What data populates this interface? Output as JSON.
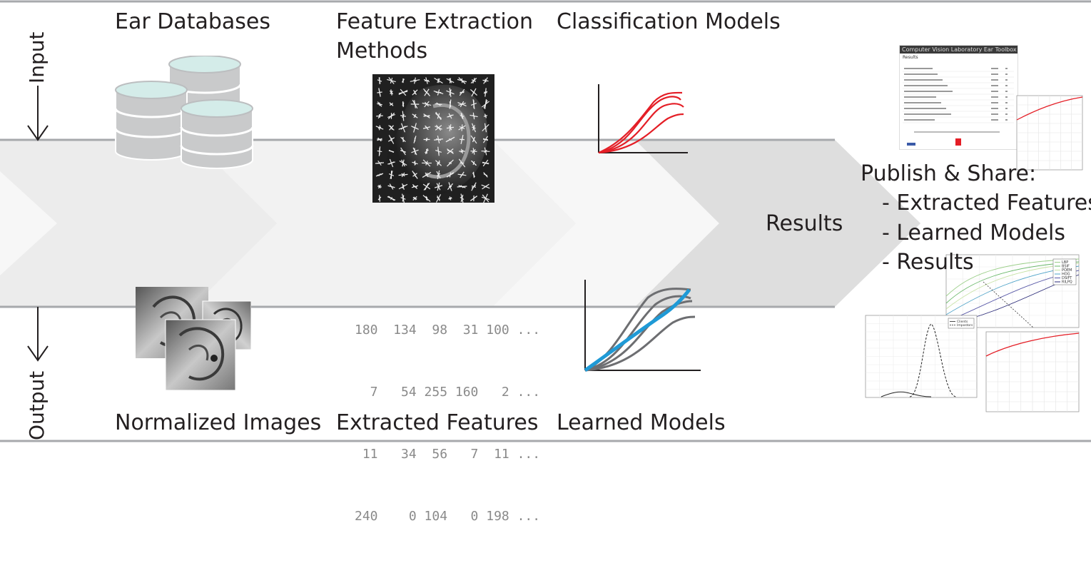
{
  "side_labels": {
    "input": "Input",
    "output": "Output"
  },
  "top_headers": {
    "ear_databases": "Ear Databases",
    "feature_extraction_line1": "Feature Extraction",
    "feature_extraction_line2": "Methods",
    "classification_models": "Classification Models"
  },
  "bottom_headers": {
    "normalized_images": "Normalized Images",
    "extracted_features": "Extracted Features",
    "learned_models": "Learned Models"
  },
  "results_label": "Results",
  "publish": {
    "title": "Publish & Share:",
    "items": [
      "- Extracted Features",
      "- Learned Models",
      "- Results"
    ]
  },
  "feature_matrix": [
    "180  134  98  31 100 ...",
    "  7   54 255 160   2 ...",
    " 11   34  56   7  11 ...",
    "240    0 104   0 198 ..."
  ],
  "toolbox_screenshot": {
    "banner": "Computer Vision Laboratory Ear Toolbox",
    "subtitle": "Results"
  },
  "roc_legend": [
    "LBP",
    "BSIF",
    "POEM",
    "HOG",
    "DSIFT",
    "RILPQ"
  ],
  "dist_legend": [
    "Clients",
    "Impostors"
  ],
  "colors": {
    "band": "#e6e6e6",
    "band_light": "#f2f2f2",
    "rule": "#a7a9ac",
    "red_curve": "#e41e26",
    "gray_curve": "#6d6e71",
    "blue_curve": "#1f9ad6",
    "database": "#c9cacb",
    "database_top": "#d4ece9"
  }
}
